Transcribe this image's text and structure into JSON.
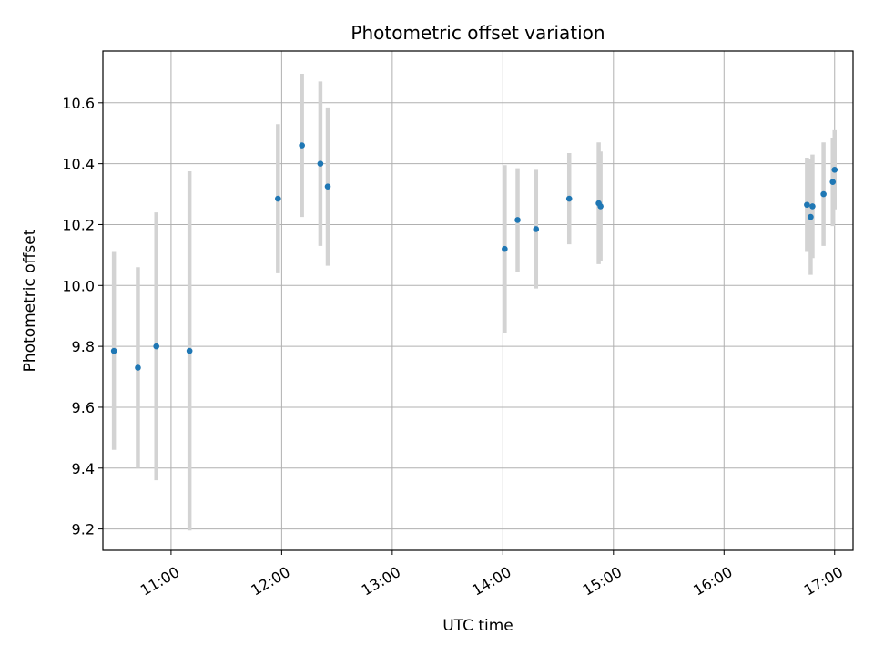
{
  "chart_data": {
    "type": "scatter",
    "title": "Photometric offset variation",
    "xlabel": "UTC time",
    "ylabel": "Photometric offset",
    "grid": true,
    "x_ticks": [
      "11:00",
      "12:00",
      "13:00",
      "14:00",
      "15:00",
      "16:00",
      "17:00"
    ],
    "y_ticks": [
      "9.2",
      "9.4",
      "9.6",
      "9.8",
      "10.0",
      "10.2",
      "10.4",
      "10.6"
    ],
    "xlim": [
      "10:23",
      "17:10"
    ],
    "ylim": [
      9.13,
      10.77
    ],
    "colors": {
      "point": "#1f77b4",
      "errorbar": "#d3d3d3",
      "grid": "#b0b0b0"
    },
    "points": [
      {
        "x": "10:29",
        "y": 9.785,
        "err": 0.325
      },
      {
        "x": "10:42",
        "y": 9.73,
        "err": 0.33
      },
      {
        "x": "10:52",
        "y": 9.8,
        "err": 0.44
      },
      {
        "x": "11:10",
        "y": 9.785,
        "err": 0.59
      },
      {
        "x": "11:58",
        "y": 10.285,
        "err": 0.245
      },
      {
        "x": "12:11",
        "y": 10.46,
        "err": 0.235
      },
      {
        "x": "12:21",
        "y": 10.4,
        "err": 0.27
      },
      {
        "x": "12:25",
        "y": 10.325,
        "err": 0.26
      },
      {
        "x": "14:01",
        "y": 10.12,
        "err": 0.275
      },
      {
        "x": "14:08",
        "y": 10.215,
        "err": 0.17
      },
      {
        "x": "14:18",
        "y": 10.185,
        "err": 0.195
      },
      {
        "x": "14:36",
        "y": 10.285,
        "err": 0.15
      },
      {
        "x": "14:52",
        "y": 10.27,
        "err": 0.2
      },
      {
        "x": "14:53",
        "y": 10.26,
        "err": 0.18
      },
      {
        "x": "16:45",
        "y": 10.265,
        "err": 0.155
      },
      {
        "x": "16:47",
        "y": 10.225,
        "err": 0.19
      },
      {
        "x": "16:48",
        "y": 10.26,
        "err": 0.17
      },
      {
        "x": "16:54",
        "y": 10.3,
        "err": 0.17
      },
      {
        "x": "16:59",
        "y": 10.34,
        "err": 0.145
      },
      {
        "x": "17:00",
        "y": 10.38,
        "err": 0.13
      }
    ]
  }
}
